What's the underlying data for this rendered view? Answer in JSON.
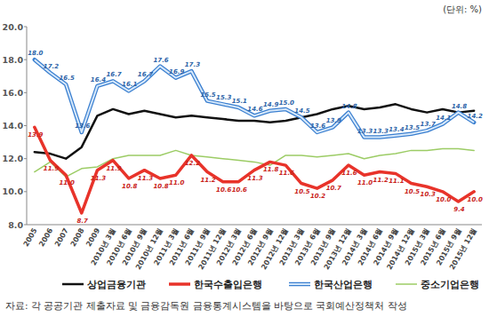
{
  "chart_data": {
    "type": "line",
    "y_label": "(단위: %)",
    "source": "자료: 각 공공기관 제출자료 및 금융감독원 금융통계시스템을 바탕으로 국회예산정책처 작성",
    "categories": [
      "2005",
      "2006",
      "2007",
      "2008",
      "2009",
      "2010년 3월",
      "2010년 6월",
      "2010년 9월",
      "2010년 12월",
      "2011년 3월",
      "2011년 6월",
      "2011년 9월",
      "2011년 12월",
      "2012년 3월",
      "2012년 6월",
      "2012년 9월",
      "2012년 12월",
      "2013년 3월",
      "2013년 6월",
      "2013년 9월",
      "2013년 12월",
      "2014년 3월",
      "2014년 6월",
      "2014년 9월",
      "2014년 12월",
      "2015년 3월",
      "2015년 6월",
      "2015년 9월",
      "2015년 12월"
    ],
    "ylim": [
      8,
      20
    ],
    "yticks": [
      {
        "value": 8,
        "label": "8.0"
      },
      {
        "value": 10,
        "label": "10.0"
      },
      {
        "value": 12,
        "label": "12.0"
      },
      {
        "value": 14,
        "label": "14.0"
      },
      {
        "value": 16,
        "label": "16.0"
      },
      {
        "value": 18,
        "label": "18.0"
      },
      {
        "value": 20,
        "label": "20.0"
      }
    ],
    "grid": false,
    "legend": "bottom",
    "series": [
      {
        "name": "상업금융기관",
        "color": "#111111",
        "values": [
          12.4,
          12.3,
          12.0,
          12.7,
          14.6,
          15.0,
          14.7,
          14.9,
          14.7,
          14.5,
          14.6,
          14.5,
          14.4,
          14.3,
          14.3,
          14.2,
          14.3,
          14.5,
          14.7,
          15.0,
          15.2,
          15.0,
          15.1,
          15.3,
          15.0,
          14.8,
          15.0,
          14.8,
          14.9
        ]
      },
      {
        "name": "한국수출입은행",
        "color": "#e8332a",
        "data_labels": true,
        "values": [
          13.9,
          11.9,
          11.0,
          8.7,
          11.3,
          11.9,
          10.8,
          11.3,
          10.8,
          11.0,
          12.2,
          11.2,
          10.6,
          10.6,
          11.3,
          11.8,
          11.6,
          10.5,
          10.2,
          10.7,
          11.6,
          11.0,
          11.2,
          11.1,
          10.5,
          10.3,
          10.0,
          9.4,
          10.0
        ],
        "value_labels": [
          "13.9",
          "11.9",
          "11.0",
          "8.7",
          "11.3",
          "11.9",
          "10.8",
          "11.3",
          "10.8",
          "11.0",
          "12.2",
          "11.2",
          "10.6",
          "10.6",
          "11.3",
          "11.8",
          "11.6",
          "10.5",
          "10.2",
          "10.7",
          "11.6",
          "11.0",
          "11.2",
          "11.1",
          "10.5",
          "10.3",
          "10.0",
          "9.4",
          "10.0"
        ]
      },
      {
        "name": "한국산업은행",
        "color": "#3a7fd0",
        "data_labels": true,
        "values": [
          18.0,
          17.2,
          16.5,
          13.6,
          16.4,
          16.7,
          16.1,
          16.7,
          17.6,
          16.9,
          17.3,
          15.5,
          15.3,
          15.1,
          14.6,
          14.9,
          15.0,
          14.5,
          13.6,
          13.9,
          14.8,
          13.3,
          13.3,
          13.4,
          13.5,
          13.7,
          14.1,
          14.8,
          14.2
        ],
        "value_labels": [
          "18.0",
          "17.2",
          "16.5",
          "13.6",
          "16.4",
          "16.7",
          "16.1",
          "16.7",
          "17.6",
          "16.9",
          "17.3",
          "15.5",
          "15.3",
          "15.1",
          "14.6",
          "14.9",
          "15.0",
          "14.5",
          "13.6",
          "13.9",
          "14.8",
          "13.3",
          "13.3",
          "13.4",
          "13.5",
          "13.7",
          "14.1",
          "14.8",
          "14.2"
        ]
      },
      {
        "name": "중소기업은행",
        "color": "#9ccc65",
        "values": [
          11.2,
          11.8,
          10.9,
          11.4,
          11.5,
          12.0,
          12.2,
          12.2,
          12.2,
          12.5,
          12.2,
          12.1,
          12.0,
          11.9,
          11.8,
          11.6,
          12.2,
          12.2,
          12.1,
          12.2,
          12.3,
          12.0,
          12.2,
          12.3,
          12.5,
          12.5,
          12.6,
          12.6,
          12.5
        ]
      }
    ]
  }
}
